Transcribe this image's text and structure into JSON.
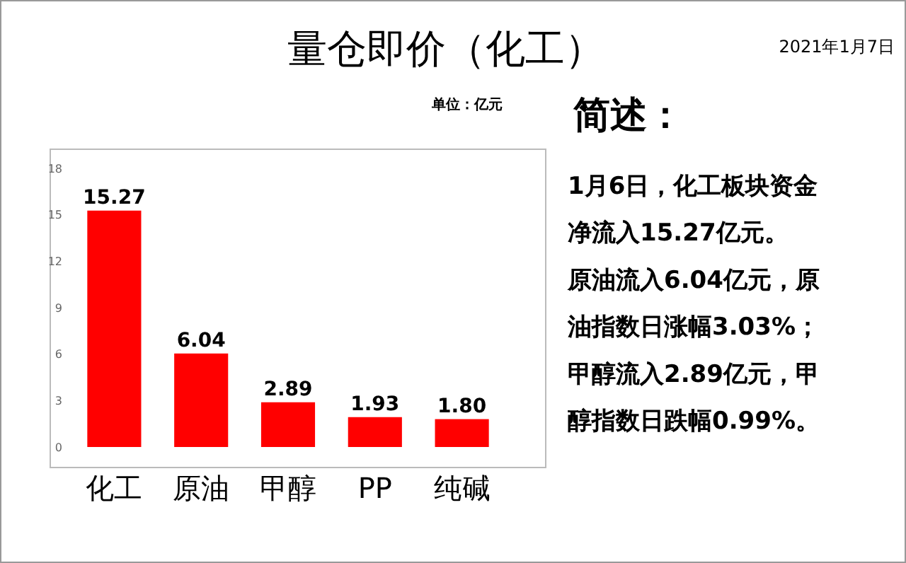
{
  "chart_data": {
    "type": "bar",
    "title": "量仓即价（化工）",
    "categories": [
      "化工",
      "原油",
      "甲醇",
      "PP",
      "纯碱"
    ],
    "values": [
      15.27,
      6.04,
      2.89,
      1.93,
      1.8
    ],
    "value_labels": [
      "15.27",
      "6.04",
      "2.89",
      "1.93",
      "1.80"
    ],
    "color": "#ff0000",
    "ylim": [
      0,
      18
    ],
    "yticks": [
      0,
      3,
      6,
      9,
      12,
      15,
      18
    ],
    "grid": false,
    "annotations": [
      "单位：亿元",
      "2021年1月7日",
      "简述：",
      "1月6日，化工板块资金",
      "净流入15.27亿元。",
      "原油流入6.04亿元，原",
      "油指数日涨幅3.03%；",
      "甲醇流入2.89亿元，甲",
      "醇指数日跌幅0.99%。"
    ]
  }
}
